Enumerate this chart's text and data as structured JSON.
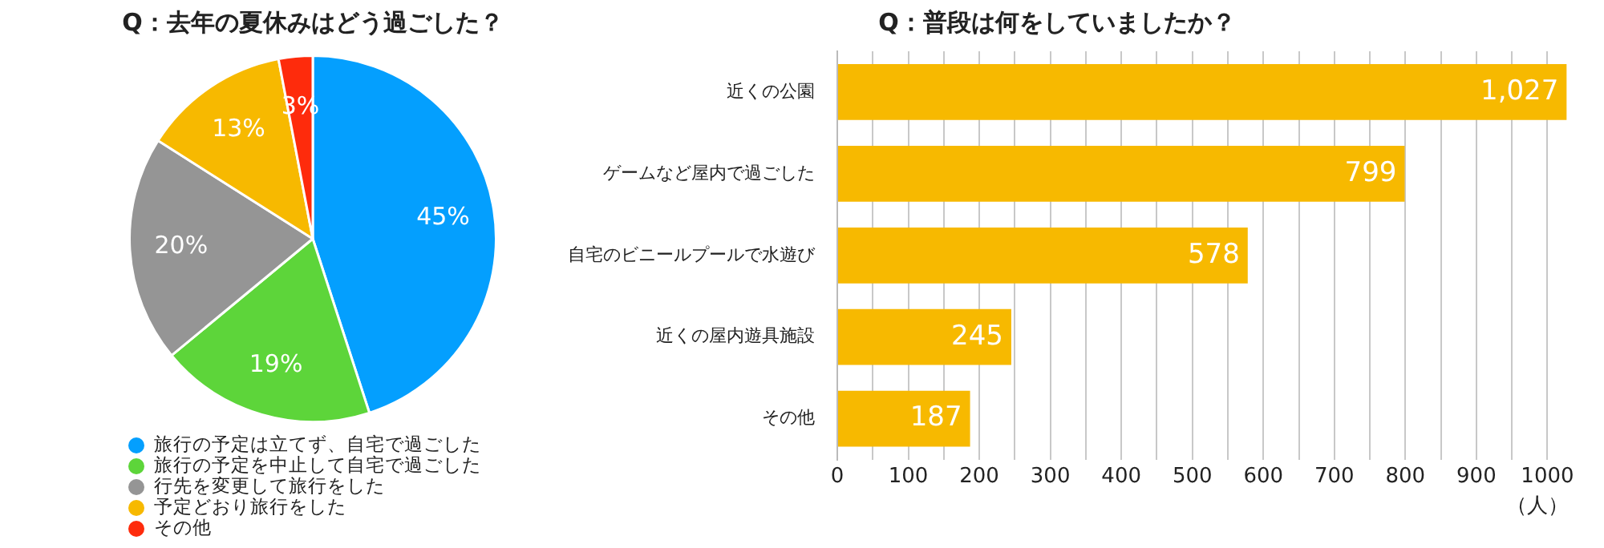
{
  "chart_data": [
    {
      "type": "pie",
      "title": "Q：去年の夏休みはどう過ごした？",
      "categories": [
        "旅行の予定は立てず、自宅で過ごした",
        "旅行の予定を中止して自宅で過ごした",
        "行先を変更して旅行をした",
        "予定どおり旅行をした",
        "その他"
      ],
      "values": [
        45,
        19,
        20,
        13,
        3
      ],
      "colors": [
        "#049ffe",
        "#5dd53a",
        "#959595",
        "#f7b900",
        "#fe2b0c"
      ],
      "value_labels": [
        "45%",
        "19%",
        "20%",
        "13%",
        "3%"
      ],
      "legend": "bottom left"
    },
    {
      "type": "bar",
      "orientation": "horizontal",
      "title": "Q：普段は何をしていましたか？",
      "categories": [
        "近くの公園",
        "ゲームなど屋内で過ごした",
        "自宅のビニールプールで水遊び",
        "近くの屋内遊具施設",
        "その他"
      ],
      "values": [
        1027,
        799,
        578,
        245,
        187
      ],
      "color": "#f7b900",
      "value_labels": [
        "1,027",
        "799",
        "578",
        "245",
        "187"
      ],
      "xlim": [
        0,
        1030
      ],
      "xticks": [
        0,
        {
          "value": 50,
          "label": null
        },
        100,
        {
          "value": 150,
          "label": null
        },
        200,
        {
          "value": 250,
          "label": null
        },
        300,
        {
          "value": 350,
          "label": null
        },
        400,
        {
          "value": 450,
          "label": null
        },
        500,
        {
          "value": 550,
          "label": null
        },
        600,
        {
          "value": 650,
          "label": null
        },
        700,
        {
          "value": 750,
          "label": null
        },
        800,
        {
          "value": 850,
          "label": null
        },
        900,
        {
          "value": 950,
          "label": null
        },
        1000
      ],
      "xlabel": "（人）",
      "grid": "x"
    }
  ]
}
